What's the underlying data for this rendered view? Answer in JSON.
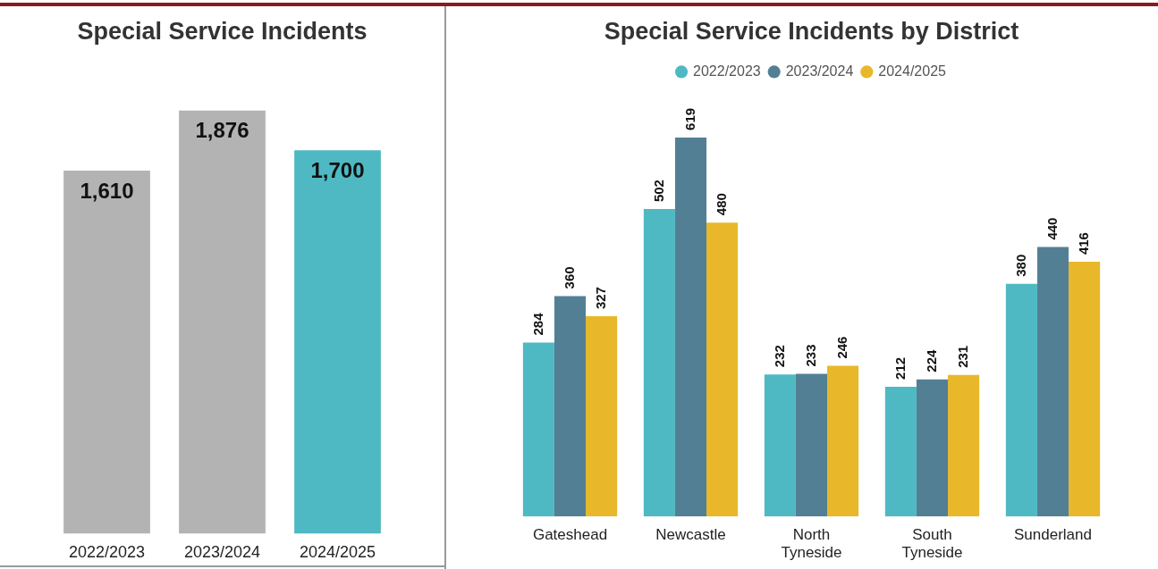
{
  "chart_data": [
    {
      "type": "bar",
      "title": "Special Service Incidents",
      "categories": [
        "2022/2023",
        "2023/2024",
        "2024/2025"
      ],
      "values": [
        1610,
        1876,
        1700
      ],
      "colors": [
        "#b3b3b3",
        "#b3b3b3",
        "#4fb9c3"
      ],
      "value_labels": [
        "1,610",
        "1,876",
        "1,700"
      ],
      "legend": false
    },
    {
      "type": "bar",
      "title": "Special Service Incidents by District",
      "categories": [
        "Gateshead",
        "Newcastle",
        "North Tyneside",
        "South Tyneside",
        "Sunderland"
      ],
      "series": [
        {
          "name": "2022/2023",
          "color": "#4fb9c3",
          "values": [
            284,
            502,
            232,
            212,
            380
          ]
        },
        {
          "name": "2023/2024",
          "color": "#537f95",
          "values": [
            360,
            619,
            233,
            224,
            440
          ]
        },
        {
          "name": "2024/2025",
          "color": "#e8b82a",
          "values": [
            327,
            480,
            246,
            231,
            416
          ]
        }
      ],
      "data_labels": true,
      "legend": "top"
    }
  ]
}
